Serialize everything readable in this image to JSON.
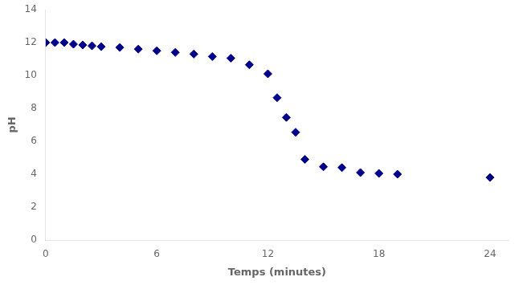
{
  "chart_data": {
    "type": "scatter",
    "x": [
      0,
      0.5,
      1,
      1.5,
      2,
      2.5,
      3,
      4,
      5,
      6,
      7,
      8,
      9,
      10,
      11,
      12,
      12.5,
      13,
      13.5,
      14,
      15,
      16,
      17,
      18,
      19,
      24
    ],
    "values": [
      12.0,
      12.0,
      12.0,
      11.9,
      11.85,
      11.8,
      11.75,
      11.7,
      11.6,
      11.5,
      11.4,
      11.3,
      11.15,
      11.05,
      10.65,
      10.1,
      8.65,
      7.45,
      6.55,
      4.9,
      4.45,
      4.4,
      4.1,
      4.05,
      4.0,
      3.8
    ],
    "color": "#00008B",
    "marker": "diamond",
    "xlabel": "Temps (minutes)",
    "ylabel": "pH",
    "xlim": [
      0,
      25
    ],
    "ylim": [
      0,
      14
    ],
    "xticks": [
      0,
      6,
      12,
      18,
      24
    ],
    "yticks": [
      0,
      2,
      4,
      6,
      8,
      10,
      12,
      14
    ],
    "grid": false
  }
}
